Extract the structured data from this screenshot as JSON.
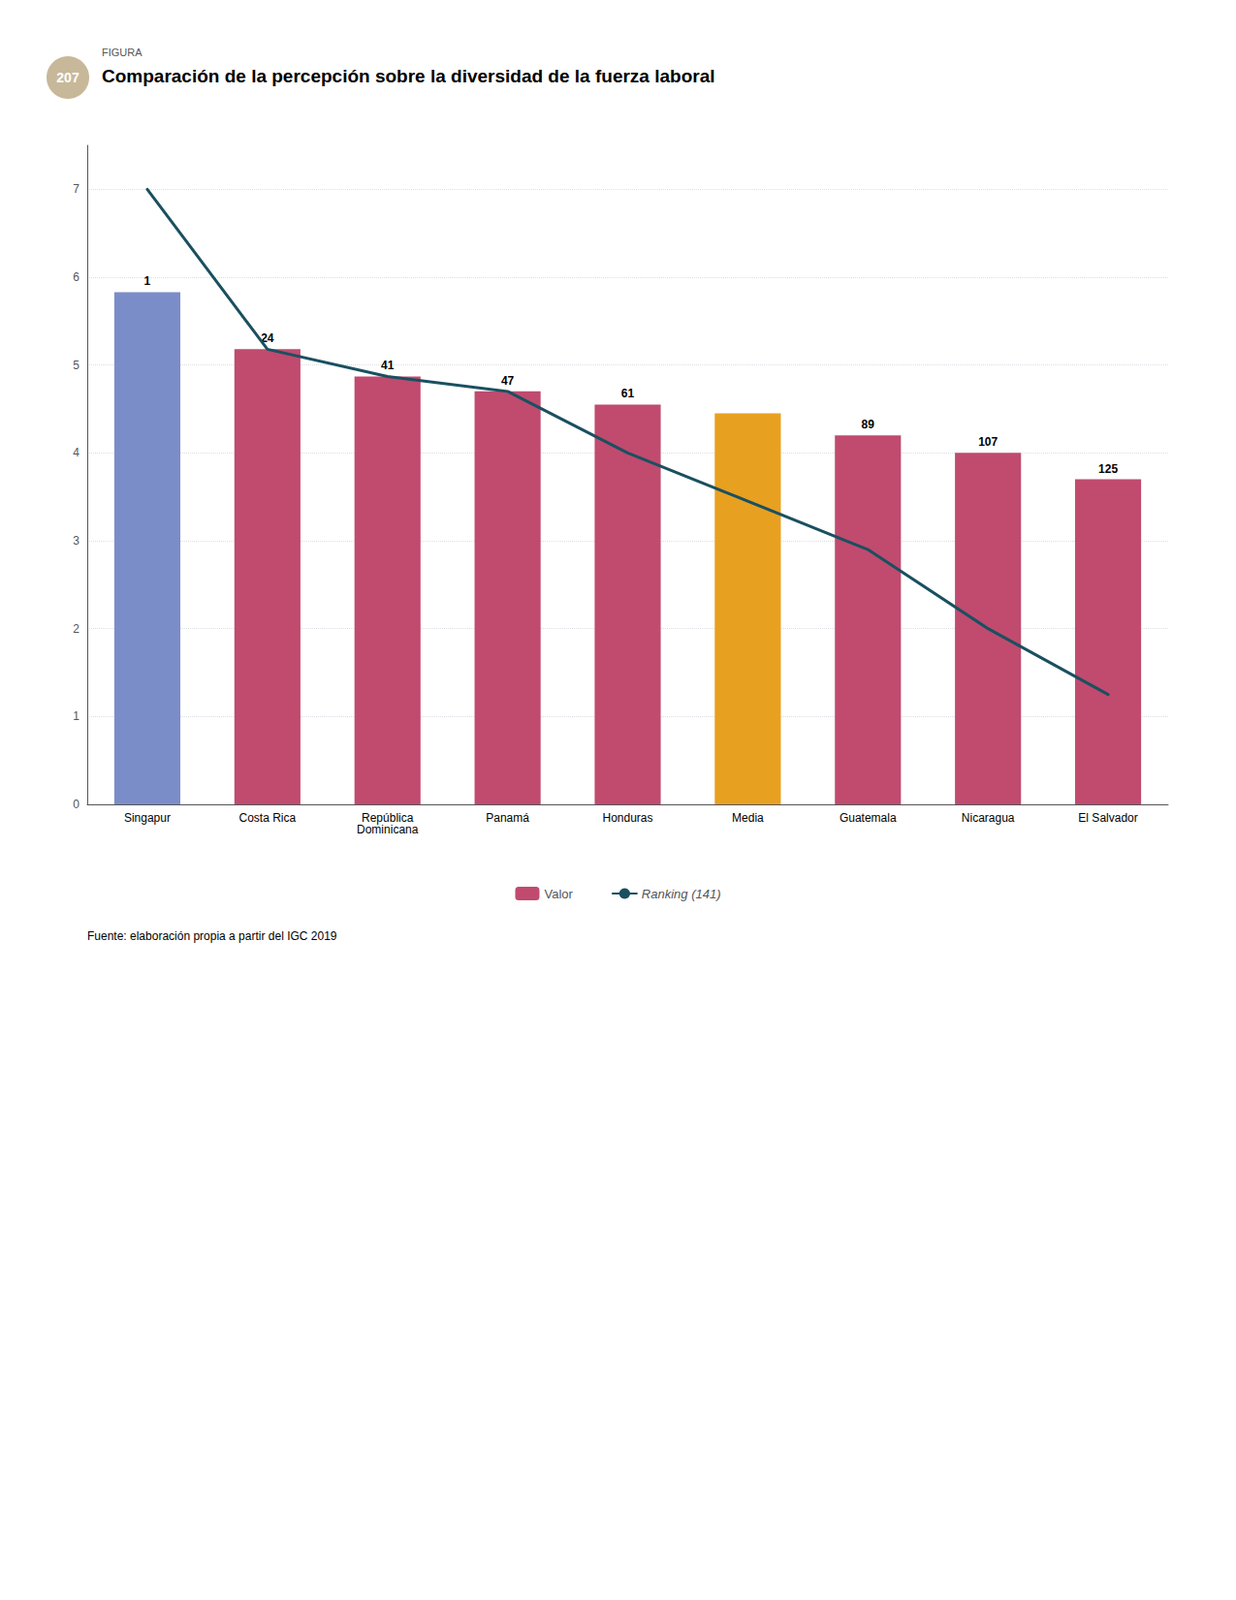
{
  "chart_data": {
    "type": "bar",
    "title": "Comparación de la percepción sobre la diversidad de la fuerza laboral",
    "categories": [
      "Singapur",
      "Costa Rica",
      "República\nDominicana",
      "Panamá",
      "Honduras",
      "Media",
      "Guatemala",
      "Nicaragua",
      "El Salvador"
    ],
    "series": [
      {
        "name": "Valor",
        "type": "bar",
        "color": "#c04b6e",
        "colors": [
          "#7b8dc8",
          "#c04b6e",
          "#c04b6e",
          "#c04b6e",
          "#c04b6e",
          "#e8a020",
          "#c04b6e",
          "#c04b6e",
          "#c04b6e"
        ],
        "values": [
          5.83,
          5.18,
          4.87,
          4.7,
          4.55,
          4.45,
          4.2,
          4.0,
          3.7
        ],
        "rankings": [
          1,
          24,
          41,
          47,
          61,
          null,
          89,
          107,
          125
        ]
      },
      {
        "name": "Ranking (141)",
        "type": "line",
        "color": "#1a5060",
        "x": [
          "Singapur",
          "Costa Rica",
          "República\nDominicana",
          "Panamá",
          "Honduras",
          "Guatemala",
          "Nicaragua",
          "El Salvador"
        ],
        "values": [
          7.0,
          5.18,
          4.87,
          4.7,
          4.0,
          2.9,
          2.0,
          1.25
        ]
      }
    ],
    "ylim": [
      0,
      7.5
    ],
    "yticks": [
      0,
      1,
      2,
      3,
      4,
      5,
      6,
      7
    ],
    "grid": true,
    "legend": "bottom",
    "annotations": [
      {
        "text": "FIGURA"
      },
      {
        "text": "207",
        "color": "#c8b89a"
      },
      {
        "text": "Fuente: elaboración propia a partir del IGC 2019"
      }
    ]
  }
}
